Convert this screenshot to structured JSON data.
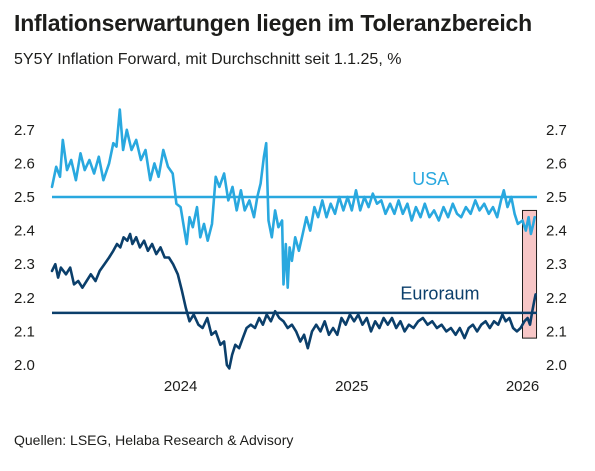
{
  "title": "Inflationserwartungen liegen im Toleranzbereich",
  "subtitle": "5Y5Y Inflation Forward, mit Durchschnitt seit 1.1.25, %",
  "source": "Quellen: LSEG, Helaba Research & Advisory",
  "colors": {
    "usa": "#29a8df",
    "euro": "#0b3f6b",
    "highlight_fill": "#f7c6c6",
    "highlight_stroke": "#1d1d1b"
  },
  "chart_data": {
    "type": "line",
    "ylim": [
      2.0,
      2.75
    ],
    "yticks": [
      "2.0",
      "2.1",
      "2.2",
      "2.3",
      "2.4",
      "2.5",
      "2.6",
      "2.7"
    ],
    "xlim": [
      "2023-04-01",
      "2026-02-01"
    ],
    "xticks": [
      {
        "date": "2024-01-01",
        "label": "2024"
      },
      {
        "date": "2025-01-01",
        "label": "2025"
      },
      {
        "date": "2026-01-01",
        "label": "2026"
      }
    ],
    "average_lines": [
      {
        "series": "USA",
        "value": 2.5
      },
      {
        "series": "Euroraum",
        "value": 2.155
      }
    ],
    "highlight_range": {
      "x": [
        "2026-01-01",
        "2026-01-31"
      ],
      "y": [
        2.08,
        2.46
      ]
    },
    "series": [
      {
        "name": "USA",
        "points": [
          [
            "2023-04-01",
            2.53
          ],
          [
            "2023-04-10",
            2.59
          ],
          [
            "2023-04-18",
            2.56
          ],
          [
            "2023-04-24",
            2.67
          ],
          [
            "2023-05-03",
            2.58
          ],
          [
            "2023-05-12",
            2.61
          ],
          [
            "2023-05-22",
            2.55
          ],
          [
            "2023-06-01",
            2.63
          ],
          [
            "2023-06-10",
            2.58
          ],
          [
            "2023-06-20",
            2.61
          ],
          [
            "2023-06-30",
            2.57
          ],
          [
            "2023-07-10",
            2.62
          ],
          [
            "2023-07-20",
            2.55
          ],
          [
            "2023-08-01",
            2.6
          ],
          [
            "2023-08-10",
            2.66
          ],
          [
            "2023-08-17",
            2.65
          ],
          [
            "2023-08-24",
            2.76
          ],
          [
            "2023-08-31",
            2.64
          ],
          [
            "2023-09-08",
            2.7
          ],
          [
            "2023-09-18",
            2.64
          ],
          [
            "2023-09-28",
            2.67
          ],
          [
            "2023-10-08",
            2.61
          ],
          [
            "2023-10-18",
            2.64
          ],
          [
            "2023-10-28",
            2.55
          ],
          [
            "2023-11-06",
            2.6
          ],
          [
            "2023-11-15",
            2.56
          ],
          [
            "2023-11-25",
            2.64
          ],
          [
            "2023-12-05",
            2.59
          ],
          [
            "2023-12-15",
            2.57
          ],
          [
            "2023-12-23",
            2.48
          ],
          [
            "2024-01-01",
            2.47
          ],
          [
            "2024-01-08",
            2.41
          ],
          [
            "2024-01-14",
            2.36
          ],
          [
            "2024-01-20",
            2.44
          ],
          [
            "2024-01-27",
            2.41
          ],
          [
            "2024-02-05",
            2.47
          ],
          [
            "2024-02-12",
            2.38
          ],
          [
            "2024-02-20",
            2.42
          ],
          [
            "2024-02-28",
            2.37
          ],
          [
            "2024-03-08",
            2.42
          ],
          [
            "2024-03-16",
            2.56
          ],
          [
            "2024-03-24",
            2.53
          ],
          [
            "2024-04-03",
            2.57
          ],
          [
            "2024-04-12",
            2.49
          ],
          [
            "2024-04-21",
            2.53
          ],
          [
            "2024-04-30",
            2.46
          ],
          [
            "2024-05-09",
            2.52
          ],
          [
            "2024-05-17",
            2.46
          ],
          [
            "2024-05-27",
            2.49
          ],
          [
            "2024-06-06",
            2.44
          ],
          [
            "2024-06-13",
            2.5
          ],
          [
            "2024-06-20",
            2.54
          ],
          [
            "2024-06-27",
            2.62
          ],
          [
            "2024-07-02",
            2.66
          ],
          [
            "2024-07-07",
            2.43
          ],
          [
            "2024-07-14",
            2.38
          ],
          [
            "2024-07-21",
            2.46
          ],
          [
            "2024-07-28",
            2.41
          ],
          [
            "2024-08-05",
            2.43
          ],
          [
            "2024-08-08",
            2.24
          ],
          [
            "2024-08-13",
            2.36
          ],
          [
            "2024-08-17",
            2.23
          ],
          [
            "2024-08-21",
            2.35
          ],
          [
            "2024-08-26",
            2.31
          ],
          [
            "2024-09-02",
            2.38
          ],
          [
            "2024-09-10",
            2.34
          ],
          [
            "2024-09-18",
            2.39
          ],
          [
            "2024-09-26",
            2.44
          ],
          [
            "2024-10-04",
            2.4
          ],
          [
            "2024-10-13",
            2.47
          ],
          [
            "2024-10-21",
            2.44
          ],
          [
            "2024-10-30",
            2.49
          ],
          [
            "2024-11-08",
            2.44
          ],
          [
            "2024-11-17",
            2.48
          ],
          [
            "2024-11-26",
            2.45
          ],
          [
            "2024-12-05",
            2.5
          ],
          [
            "2024-12-14",
            2.46
          ],
          [
            "2024-12-23",
            2.5
          ],
          [
            "2025-01-01",
            2.46
          ],
          [
            "2025-01-10",
            2.52
          ],
          [
            "2025-01-19",
            2.46
          ],
          [
            "2025-01-28",
            2.5
          ],
          [
            "2025-02-06",
            2.47
          ],
          [
            "2025-02-15",
            2.51
          ],
          [
            "2025-02-24",
            2.48
          ],
          [
            "2025-03-05",
            2.49
          ],
          [
            "2025-03-14",
            2.45
          ],
          [
            "2025-03-24",
            2.48
          ],
          [
            "2025-04-02",
            2.45
          ],
          [
            "2025-04-11",
            2.49
          ],
          [
            "2025-04-20",
            2.45
          ],
          [
            "2025-04-30",
            2.48
          ],
          [
            "2025-05-09",
            2.43
          ],
          [
            "2025-05-18",
            2.47
          ],
          [
            "2025-05-28",
            2.44
          ],
          [
            "2025-06-06",
            2.48
          ],
          [
            "2025-06-16",
            2.44
          ],
          [
            "2025-06-26",
            2.46
          ],
          [
            "2025-07-06",
            2.43
          ],
          [
            "2025-07-16",
            2.47
          ],
          [
            "2025-07-26",
            2.44
          ],
          [
            "2025-08-05",
            2.48
          ],
          [
            "2025-08-14",
            2.45
          ],
          [
            "2025-08-23",
            2.44
          ],
          [
            "2025-09-02",
            2.47
          ],
          [
            "2025-09-12",
            2.45
          ],
          [
            "2025-09-22",
            2.49
          ],
          [
            "2025-10-01",
            2.46
          ],
          [
            "2025-10-11",
            2.48
          ],
          [
            "2025-10-21",
            2.45
          ],
          [
            "2025-10-30",
            2.47
          ],
          [
            "2025-11-08",
            2.44
          ],
          [
            "2025-11-16",
            2.49
          ],
          [
            "2025-11-22",
            2.52
          ],
          [
            "2025-11-30",
            2.47
          ],
          [
            "2025-12-08",
            2.5
          ],
          [
            "2025-12-15",
            2.45
          ],
          [
            "2025-12-22",
            2.42
          ],
          [
            "2026-01-01",
            2.43
          ],
          [
            "2026-01-08",
            2.4
          ],
          [
            "2026-01-14",
            2.44
          ],
          [
            "2026-01-19",
            2.39
          ],
          [
            "2026-01-24",
            2.42
          ],
          [
            "2026-01-27",
            2.44
          ]
        ]
      },
      {
        "name": "Euroraum",
        "points": [
          [
            "2023-04-01",
            2.28
          ],
          [
            "2023-04-08",
            2.3
          ],
          [
            "2023-04-14",
            2.26
          ],
          [
            "2023-04-20",
            2.29
          ],
          [
            "2023-05-01",
            2.27
          ],
          [
            "2023-05-10",
            2.29
          ],
          [
            "2023-05-18",
            2.24
          ],
          [
            "2023-05-27",
            2.25
          ],
          [
            "2023-06-05",
            2.23
          ],
          [
            "2023-06-14",
            2.25
          ],
          [
            "2023-06-23",
            2.27
          ],
          [
            "2023-07-03",
            2.25
          ],
          [
            "2023-07-12",
            2.28
          ],
          [
            "2023-07-22",
            2.3
          ],
          [
            "2023-08-01",
            2.32
          ],
          [
            "2023-08-10",
            2.34
          ],
          [
            "2023-08-18",
            2.36
          ],
          [
            "2023-08-25",
            2.35
          ],
          [
            "2023-09-01",
            2.38
          ],
          [
            "2023-09-09",
            2.37
          ],
          [
            "2023-09-15",
            2.39
          ],
          [
            "2023-09-20",
            2.36
          ],
          [
            "2023-09-28",
            2.38
          ],
          [
            "2023-10-06",
            2.35
          ],
          [
            "2023-10-15",
            2.37
          ],
          [
            "2023-10-23",
            2.34
          ],
          [
            "2023-11-01",
            2.36
          ],
          [
            "2023-11-10",
            2.33
          ],
          [
            "2023-11-19",
            2.35
          ],
          [
            "2023-11-28",
            2.32
          ],
          [
            "2023-12-07",
            2.32
          ],
          [
            "2023-12-16",
            2.3
          ],
          [
            "2023-12-26",
            2.27
          ],
          [
            "2024-01-04",
            2.22
          ],
          [
            "2024-01-12",
            2.17
          ],
          [
            "2024-01-20",
            2.13
          ],
          [
            "2024-01-29",
            2.15
          ],
          [
            "2024-02-08",
            2.12
          ],
          [
            "2024-02-17",
            2.11
          ],
          [
            "2024-02-27",
            2.14
          ],
          [
            "2024-03-07",
            2.09
          ],
          [
            "2024-03-16",
            2.1
          ],
          [
            "2024-03-26",
            2.06
          ],
          [
            "2024-04-03",
            2.07
          ],
          [
            "2024-04-09",
            2.0
          ],
          [
            "2024-04-14",
            1.99
          ],
          [
            "2024-04-20",
            2.03
          ],
          [
            "2024-04-27",
            2.06
          ],
          [
            "2024-05-05",
            2.05
          ],
          [
            "2024-05-13",
            2.08
          ],
          [
            "2024-05-21",
            2.11
          ],
          [
            "2024-05-30",
            2.12
          ],
          [
            "2024-06-08",
            2.11
          ],
          [
            "2024-06-17",
            2.14
          ],
          [
            "2024-06-25",
            2.12
          ],
          [
            "2024-07-03",
            2.15
          ],
          [
            "2024-07-12",
            2.13
          ],
          [
            "2024-07-21",
            2.16
          ],
          [
            "2024-07-30",
            2.14
          ],
          [
            "2024-08-08",
            2.13
          ],
          [
            "2024-08-17",
            2.11
          ],
          [
            "2024-08-26",
            2.12
          ],
          [
            "2024-09-04",
            2.1
          ],
          [
            "2024-09-13",
            2.07
          ],
          [
            "2024-09-21",
            2.09
          ],
          [
            "2024-09-29",
            2.05
          ],
          [
            "2024-10-08",
            2.1
          ],
          [
            "2024-10-17",
            2.12
          ],
          [
            "2024-10-26",
            2.1
          ],
          [
            "2024-11-04",
            2.13
          ],
          [
            "2024-11-13",
            2.09
          ],
          [
            "2024-11-22",
            2.11
          ],
          [
            "2024-12-01",
            2.09
          ],
          [
            "2024-12-10",
            2.14
          ],
          [
            "2024-12-19",
            2.12
          ],
          [
            "2024-12-28",
            2.15
          ],
          [
            "2025-01-06",
            2.13
          ],
          [
            "2025-01-15",
            2.15
          ],
          [
            "2025-01-24",
            2.12
          ],
          [
            "2025-02-02",
            2.14
          ],
          [
            "2025-02-11",
            2.1
          ],
          [
            "2025-02-20",
            2.13
          ],
          [
            "2025-03-01",
            2.11
          ],
          [
            "2025-03-10",
            2.14
          ],
          [
            "2025-03-19",
            2.12
          ],
          [
            "2025-03-28",
            2.14
          ],
          [
            "2025-04-06",
            2.11
          ],
          [
            "2025-04-15",
            2.13
          ],
          [
            "2025-04-24",
            2.1
          ],
          [
            "2025-05-03",
            2.12
          ],
          [
            "2025-05-13",
            2.11
          ],
          [
            "2025-05-23",
            2.13
          ],
          [
            "2025-06-02",
            2.14
          ],
          [
            "2025-06-12",
            2.12
          ],
          [
            "2025-06-22",
            2.13
          ],
          [
            "2025-07-02",
            2.11
          ],
          [
            "2025-07-12",
            2.12
          ],
          [
            "2025-07-22",
            2.1
          ],
          [
            "2025-08-01",
            2.11
          ],
          [
            "2025-08-11",
            2.09
          ],
          [
            "2025-08-20",
            2.11
          ],
          [
            "2025-08-30",
            2.08
          ],
          [
            "2025-09-08",
            2.11
          ],
          [
            "2025-09-17",
            2.12
          ],
          [
            "2025-09-26",
            2.1
          ],
          [
            "2025-10-05",
            2.12
          ],
          [
            "2025-10-14",
            2.13
          ],
          [
            "2025-10-23",
            2.11
          ],
          [
            "2025-11-01",
            2.13
          ],
          [
            "2025-11-10",
            2.12
          ],
          [
            "2025-11-19",
            2.15
          ],
          [
            "2025-11-26",
            2.13
          ],
          [
            "2025-12-04",
            2.14
          ],
          [
            "2025-12-12",
            2.11
          ],
          [
            "2025-12-20",
            2.1
          ],
          [
            "2025-12-28",
            2.11
          ],
          [
            "2026-01-05",
            2.13
          ],
          [
            "2026-01-12",
            2.14
          ],
          [
            "2026-01-17",
            2.12
          ],
          [
            "2026-01-22",
            2.16
          ],
          [
            "2026-01-26",
            2.19
          ],
          [
            "2026-01-29",
            2.21
          ]
        ]
      }
    ],
    "series_labels": [
      {
        "series": "USA",
        "text": "USA",
        "x": "2025-05-10",
        "y": 2.535
      },
      {
        "series": "Euroraum",
        "text": "Euroraum",
        "x": "2025-04-15",
        "y": 2.195
      }
    ]
  }
}
